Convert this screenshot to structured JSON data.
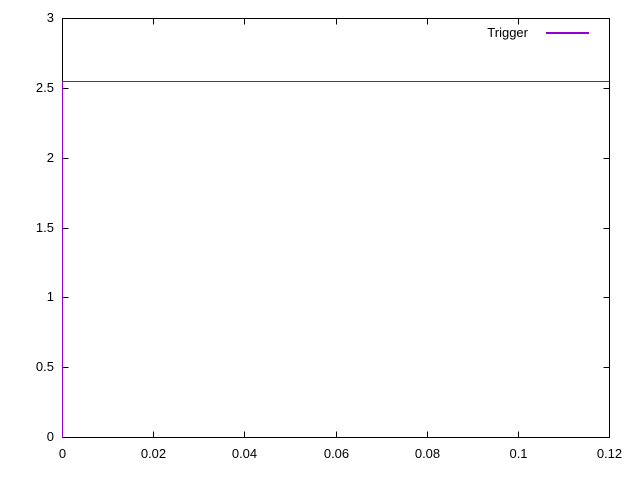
{
  "window": {
    "background": "#ffffff"
  },
  "chart_data": {
    "type": "line",
    "title": "",
    "xlabel": "",
    "ylabel": "",
    "xlim": [
      0,
      0.12
    ],
    "ylim": [
      0,
      3
    ],
    "grid": false,
    "legend_position": "top-right-inside",
    "axis_color": "#000000",
    "text_color": "#000000",
    "x_ticks": [
      0,
      0.02,
      0.04,
      0.06,
      0.08,
      0.1,
      0.12
    ],
    "x_tick_labels": [
      "0",
      "0.02",
      "0.04",
      "0.06",
      "0.08",
      "0.1",
      "0.12"
    ],
    "y_ticks": [
      0,
      0.5,
      1,
      1.5,
      2,
      2.5,
      3
    ],
    "y_tick_labels": [
      "0",
      "0.5",
      "1",
      "1.5",
      "2",
      "2.5",
      "3"
    ],
    "trigger_level": 2.55,
    "series": [
      {
        "name": "Trigger",
        "color": "#9400d3",
        "points": [
          [
            0,
            0
          ],
          [
            0,
            2.55
          ],
          [
            0.12,
            2.55
          ]
        ]
      }
    ]
  }
}
